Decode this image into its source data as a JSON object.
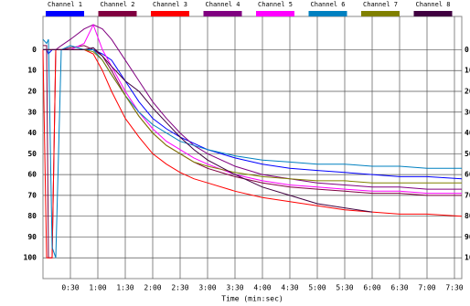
{
  "chart_data": {
    "type": "line",
    "x_label": "Time (min:sec)",
    "x": [
      0,
      4,
      6,
      10,
      14,
      20,
      30,
      45,
      55,
      65,
      75,
      90,
      105,
      120,
      135,
      150,
      165,
      180,
      210,
      240,
      270,
      300,
      330,
      360,
      390,
      420,
      458
    ],
    "xlim": [
      0,
      458
    ],
    "xticks": [
      {
        "value": 30,
        "label": "0:30"
      },
      {
        "value": 60,
        "label": "1:00"
      },
      {
        "value": 90,
        "label": "1:30"
      },
      {
        "value": 120,
        "label": "2:00"
      },
      {
        "value": 150,
        "label": "2:30"
      },
      {
        "value": 180,
        "label": "3:00"
      },
      {
        "value": 210,
        "label": "3:30"
      },
      {
        "value": 240,
        "label": "4:00"
      },
      {
        "value": 270,
        "label": "4:30"
      },
      {
        "value": 300,
        "label": "5:00"
      },
      {
        "value": 330,
        "label": "5:30"
      },
      {
        "value": 360,
        "label": "6:00"
      },
      {
        "value": 390,
        "label": "6:30"
      },
      {
        "value": 420,
        "label": "7:00"
      },
      {
        "value": 450,
        "label": "7:30"
      }
    ],
    "ylim": [
      -16,
      110
    ],
    "y_inverted": true,
    "yticks": [
      0,
      10,
      20,
      30,
      40,
      50,
      60,
      70,
      80,
      90,
      100
    ],
    "grid": true,
    "legend": "top",
    "series": [
      {
        "name": "Channel 1",
        "color": "#0000ff",
        "values": [
          0,
          0,
          2,
          0,
          0,
          0,
          0,
          0,
          0,
          2,
          5,
          15,
          25,
          33,
          38,
          42,
          45,
          48,
          52,
          55,
          57,
          58,
          59,
          60,
          61,
          61,
          62
        ]
      },
      {
        "name": "Channel 2",
        "color": "#800040",
        "values": [
          -2,
          -2,
          100,
          100,
          0,
          0,
          -1,
          -2,
          0,
          3,
          10,
          22,
          32,
          40,
          46,
          50,
          54,
          57,
          61,
          64,
          66,
          67,
          68,
          69,
          69,
          70,
          70
        ]
      },
      {
        "name": "Channel 3",
        "color": "#ff0000",
        "values": [
          0,
          100,
          100,
          100,
          0,
          0,
          0,
          0,
          2,
          10,
          20,
          33,
          42,
          50,
          55,
          59,
          62,
          64,
          68,
          71,
          73,
          75,
          77,
          78,
          79,
          79,
          80
        ]
      },
      {
        "name": "Channel 4",
        "color": "#800080",
        "values": [
          0,
          0,
          0,
          0,
          0,
          -2,
          -5,
          -10,
          -12,
          -10,
          -5,
          5,
          15,
          25,
          33,
          40,
          46,
          50,
          56,
          60,
          62,
          64,
          65,
          66,
          66,
          67,
          67
        ]
      },
      {
        "name": "Channel 5",
        "color": "#ff00ff",
        "values": [
          0,
          0,
          0,
          0,
          0,
          0,
          0,
          -3,
          -12,
          0,
          8,
          20,
          30,
          38,
          44,
          48,
          52,
          55,
          60,
          63,
          65,
          66,
          67,
          68,
          68,
          69,
          69
        ]
      },
      {
        "name": "Channel 6",
        "color": "#0080c0",
        "values": [
          -5,
          -3,
          -5,
          95,
          100,
          0,
          -2,
          0,
          0,
          5,
          12,
          22,
          30,
          36,
          40,
          44,
          46,
          48,
          51,
          53,
          54,
          55,
          55,
          56,
          56,
          57,
          57
        ]
      },
      {
        "name": "Channel 7",
        "color": "#808000",
        "values": [
          0,
          0,
          0,
          0,
          0,
          0,
          0,
          0,
          1,
          5,
          12,
          22,
          32,
          40,
          46,
          50,
          54,
          56,
          59,
          61,
          62,
          63,
          63,
          64,
          64,
          64,
          64
        ]
      },
      {
        "name": "Channel 8",
        "color": "#400040",
        "values": [
          0,
          0,
          0,
          0,
          0,
          0,
          0,
          0,
          -1,
          3,
          8,
          15,
          20,
          28,
          35,
          42,
          48,
          53,
          60,
          66,
          70,
          74,
          76,
          78,
          null,
          null,
          null
        ]
      }
    ]
  }
}
